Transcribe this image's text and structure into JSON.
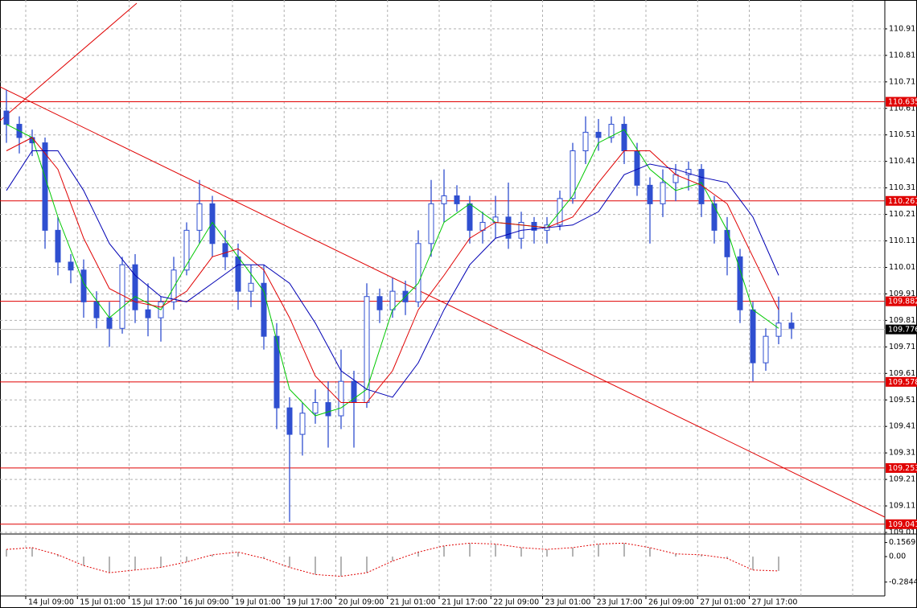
{
  "chart_data": {
    "type": "candlestick",
    "color": "#2f4fd0",
    "grid": true,
    "ylim": [
      109.007,
      111.019
    ],
    "yticks": [
      {
        "value": 110.91,
        "label": "110.910"
      },
      {
        "value": 110.81,
        "label": "110.810"
      },
      {
        "value": 110.71,
        "label": "110.710"
      },
      {
        "value": 110.61,
        "label": "110.610"
      },
      {
        "value": 110.51,
        "label": "110.510"
      },
      {
        "value": 110.41,
        "label": "110.410"
      },
      {
        "value": 110.31,
        "label": "110.310"
      },
      {
        "value": 110.21,
        "label": "110.210"
      },
      {
        "value": 110.11,
        "label": "110.110"
      },
      {
        "value": 110.01,
        "label": "110.010"
      },
      {
        "value": 109.91,
        "label": "109.910"
      },
      {
        "value": 109.81,
        "label": "109.810"
      },
      {
        "value": 109.71,
        "label": "109.710"
      },
      {
        "value": 109.61,
        "label": "109.610"
      },
      {
        "value": 109.51,
        "label": "109.510"
      },
      {
        "value": 109.41,
        "label": "109.410"
      },
      {
        "value": 109.31,
        "label": "109.310"
      },
      {
        "value": 109.21,
        "label": "109.210"
      },
      {
        "value": 109.11,
        "label": "109.110"
      },
      {
        "value": 109.01,
        "label": "109.010"
      }
    ],
    "xtick_labels": [
      "14 Jul 09:00",
      "15 Jul 01:00",
      "15 Jul 17:00",
      "16 Jul 09:00",
      "19 Jul 01:00",
      "19 Jul 17:00",
      "20 Jul 09:00",
      "21 Jul 01:00",
      "21 Jul 17:00",
      "22 Jul 09:00",
      "23 Jul 01:00",
      "23 Jul 17:00",
      "26 Jul 09:00",
      "27 Jul 01:00",
      "27 Jul 17:00"
    ],
    "open": [
      110.6,
      110.55,
      110.5,
      110.48,
      110.15,
      110.03,
      110.0,
      109.88,
      109.82,
      109.78,
      110.02,
      109.85,
      109.82,
      109.88,
      110.0,
      110.15,
      110.25,
      110.1,
      110.05,
      109.92,
      109.95,
      109.75,
      109.48,
      109.38,
      109.46,
      109.5,
      109.45,
      109.58,
      109.5,
      109.9,
      109.85,
      109.92,
      109.88,
      110.1,
      110.25,
      110.28,
      110.25,
      110.15,
      110.18,
      110.2,
      110.12,
      110.18,
      110.15,
      110.17,
      110.27,
      110.45,
      110.52,
      110.5,
      110.55,
      110.45,
      110.32,
      110.25,
      110.33,
      110.36,
      110.38,
      110.25,
      110.15,
      110.05,
      109.85,
      109.65,
      109.75,
      109.8
    ],
    "high": [
      110.68,
      110.58,
      110.53,
      110.5,
      110.2,
      110.06,
      110.04,
      109.92,
      109.88,
      110.05,
      110.06,
      109.95,
      109.9,
      110.05,
      110.18,
      110.34,
      110.28,
      110.15,
      110.1,
      110.02,
      110.02,
      109.8,
      109.52,
      109.5,
      109.55,
      109.58,
      109.7,
      109.62,
      109.95,
      109.93,
      109.97,
      109.96,
      110.15,
      110.34,
      110.38,
      110.32,
      110.28,
      110.22,
      110.28,
      110.33,
      110.22,
      110.2,
      110.2,
      110.3,
      110.48,
      110.58,
      110.57,
      110.58,
      110.58,
      110.48,
      110.35,
      110.38,
      110.4,
      110.41,
      110.4,
      110.28,
      110.2,
      110.08,
      109.88,
      109.78,
      109.9,
      109.84
    ],
    "low": [
      110.48,
      110.44,
      110.43,
      110.08,
      109.98,
      109.95,
      109.82,
      109.78,
      109.71,
      109.76,
      109.8,
      109.75,
      109.73,
      109.85,
      109.98,
      110.1,
      110.05,
      110.0,
      109.85,
      109.86,
      109.7,
      109.4,
      109.05,
      109.3,
      109.42,
      109.33,
      109.4,
      109.33,
      109.48,
      109.8,
      109.82,
      109.83,
      109.86,
      110.05,
      110.18,
      110.22,
      110.1,
      110.1,
      110.12,
      110.08,
      110.08,
      110.1,
      110.1,
      110.15,
      110.25,
      110.4,
      110.45,
      110.48,
      110.4,
      110.28,
      110.1,
      110.2,
      110.26,
      110.3,
      110.2,
      110.1,
      109.98,
      109.8,
      109.58,
      109.62,
      109.72,
      109.74
    ],
    "close": [
      110.55,
      110.5,
      110.48,
      110.15,
      110.03,
      110.0,
      109.88,
      109.82,
      109.78,
      110.02,
      109.85,
      109.82,
      109.88,
      110.0,
      110.15,
      110.25,
      110.1,
      110.05,
      109.92,
      109.95,
      109.75,
      109.48,
      109.38,
      109.46,
      109.5,
      109.45,
      109.58,
      109.5,
      109.9,
      109.85,
      109.92,
      109.88,
      110.1,
      110.25,
      110.28,
      110.25,
      110.15,
      110.18,
      110.2,
      110.12,
      110.18,
      110.15,
      110.17,
      110.27,
      110.45,
      110.52,
      110.5,
      110.55,
      110.45,
      110.32,
      110.25,
      110.33,
      110.36,
      110.38,
      110.25,
      110.15,
      110.05,
      109.85,
      109.65,
      109.75,
      109.8,
      109.78
    ],
    "moving_averages": [
      {
        "color": "#00c800",
        "values": [
          110.55,
          110.5,
          110.2,
          109.95,
          109.82,
          109.9,
          109.85,
          110.02,
          110.18,
          110.05,
          109.92,
          109.55,
          109.45,
          109.48,
          109.55,
          109.85,
          109.95,
          110.18,
          110.25,
          110.18,
          110.17,
          110.16,
          110.28,
          110.48,
          110.53,
          110.38,
          110.3,
          110.33,
          110.15,
          109.85,
          109.78
        ]
      },
      {
        "color": "#e00000",
        "values": [
          110.45,
          110.5,
          110.38,
          110.12,
          109.93,
          109.88,
          109.86,
          109.92,
          110.05,
          110.08,
          110.0,
          109.82,
          109.6,
          109.5,
          109.5,
          109.62,
          109.85,
          109.98,
          110.12,
          110.18,
          110.17,
          110.16,
          110.2,
          110.33,
          110.45,
          110.45,
          110.36,
          110.32,
          110.25,
          110.05,
          109.85
        ]
      },
      {
        "color": "#0000b4",
        "values": [
          110.3,
          110.45,
          110.45,
          110.3,
          110.1,
          109.98,
          109.9,
          109.88,
          109.95,
          110.02,
          110.02,
          109.95,
          109.8,
          109.62,
          109.55,
          109.52,
          109.65,
          109.85,
          110.02,
          110.12,
          110.15,
          110.16,
          110.17,
          110.22,
          110.36,
          110.4,
          110.38,
          110.35,
          110.33,
          110.2,
          109.98
        ]
      }
    ],
    "levels": [
      110.635,
      110.261,
      109.882,
      109.578,
      109.253,
      109.041
    ],
    "level_color": "#e00000",
    "last_price": 109.776,
    "oscillator": {
      "ylim": [
        -0.43,
        0.225
      ],
      "yticks": [
        0.1569,
        {
          "value": 0,
          "label": "0.00"
        },
        -0.2844
      ],
      "color": "#e00000",
      "bar_color": "#b4b4b4",
      "values": [
        0.08,
        0.1,
        0.02,
        -0.1,
        -0.18,
        -0.15,
        -0.12,
        -0.06,
        0.02,
        0.05,
        -0.02,
        -0.12,
        -0.2,
        -0.22,
        -0.18,
        -0.05,
        0.05,
        0.12,
        0.15,
        0.14,
        0.1,
        0.08,
        0.1,
        0.14,
        0.15,
        0.1,
        0.03,
        0.02,
        -0.02,
        -0.15,
        -0.16
      ]
    }
  }
}
